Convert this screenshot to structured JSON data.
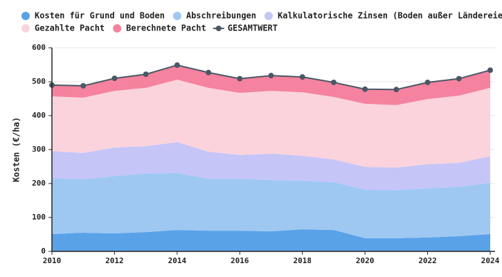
{
  "chart_data": {
    "type": "stacked-area",
    "y_label": "Kosten (€/ha)",
    "x": [
      2010,
      2011,
      2012,
      2013,
      2014,
      2015,
      2016,
      2017,
      2018,
      2019,
      2020,
      2021,
      2022,
      2023,
      2024
    ],
    "xlim": [
      2010,
      2024
    ],
    "xticks": [
      2010,
      2012,
      2014,
      2016,
      2018,
      2020,
      2022,
      2024
    ],
    "ylim": [
      0,
      600
    ],
    "yticks": [
      0,
      100,
      200,
      300,
      400,
      500,
      600
    ],
    "grid": true,
    "series": [
      {
        "name": "Kosten für Grund und Boden",
        "color": "#5aa2e8",
        "values": [
          51,
          55,
          53,
          57,
          63,
          61,
          61,
          59,
          65,
          63,
          39,
          39,
          41,
          45,
          51
        ]
      },
      {
        "name": "Abschreibungen",
        "color": "#9ec8f2",
        "values": [
          165,
          157,
          169,
          172,
          168,
          153,
          153,
          151,
          143,
          141,
          143,
          141,
          145,
          145,
          151
        ]
      },
      {
        "name": "Kalkulatorische Zinsen (Boden außer Ländereie",
        "color": "#c5c5f7",
        "values": [
          80,
          78,
          84,
          81,
          91,
          80,
          70,
          78,
          74,
          67,
          67,
          67,
          71,
          71,
          78
        ]
      },
      {
        "name": "Gezahlte Pacht",
        "color": "#fbd3dc",
        "values": [
          161,
          163,
          167,
          172,
          184,
          188,
          183,
          185,
          187,
          184,
          186,
          184,
          192,
          198,
          202
        ]
      },
      {
        "name": "Berechnete Pacht",
        "color": "#f5829e",
        "values": [
          33,
          35,
          37,
          40,
          43,
          45,
          42,
          45,
          45,
          43,
          43,
          46,
          49,
          50,
          52
        ]
      },
      {
        "name": "GESAMTWERT",
        "color": "#4a5866",
        "kind": "line",
        "values": [
          490,
          488,
          510,
          522,
          549,
          527,
          509,
          518,
          514,
          498,
          478,
          477,
          498,
          509,
          534
        ]
      }
    ]
  }
}
